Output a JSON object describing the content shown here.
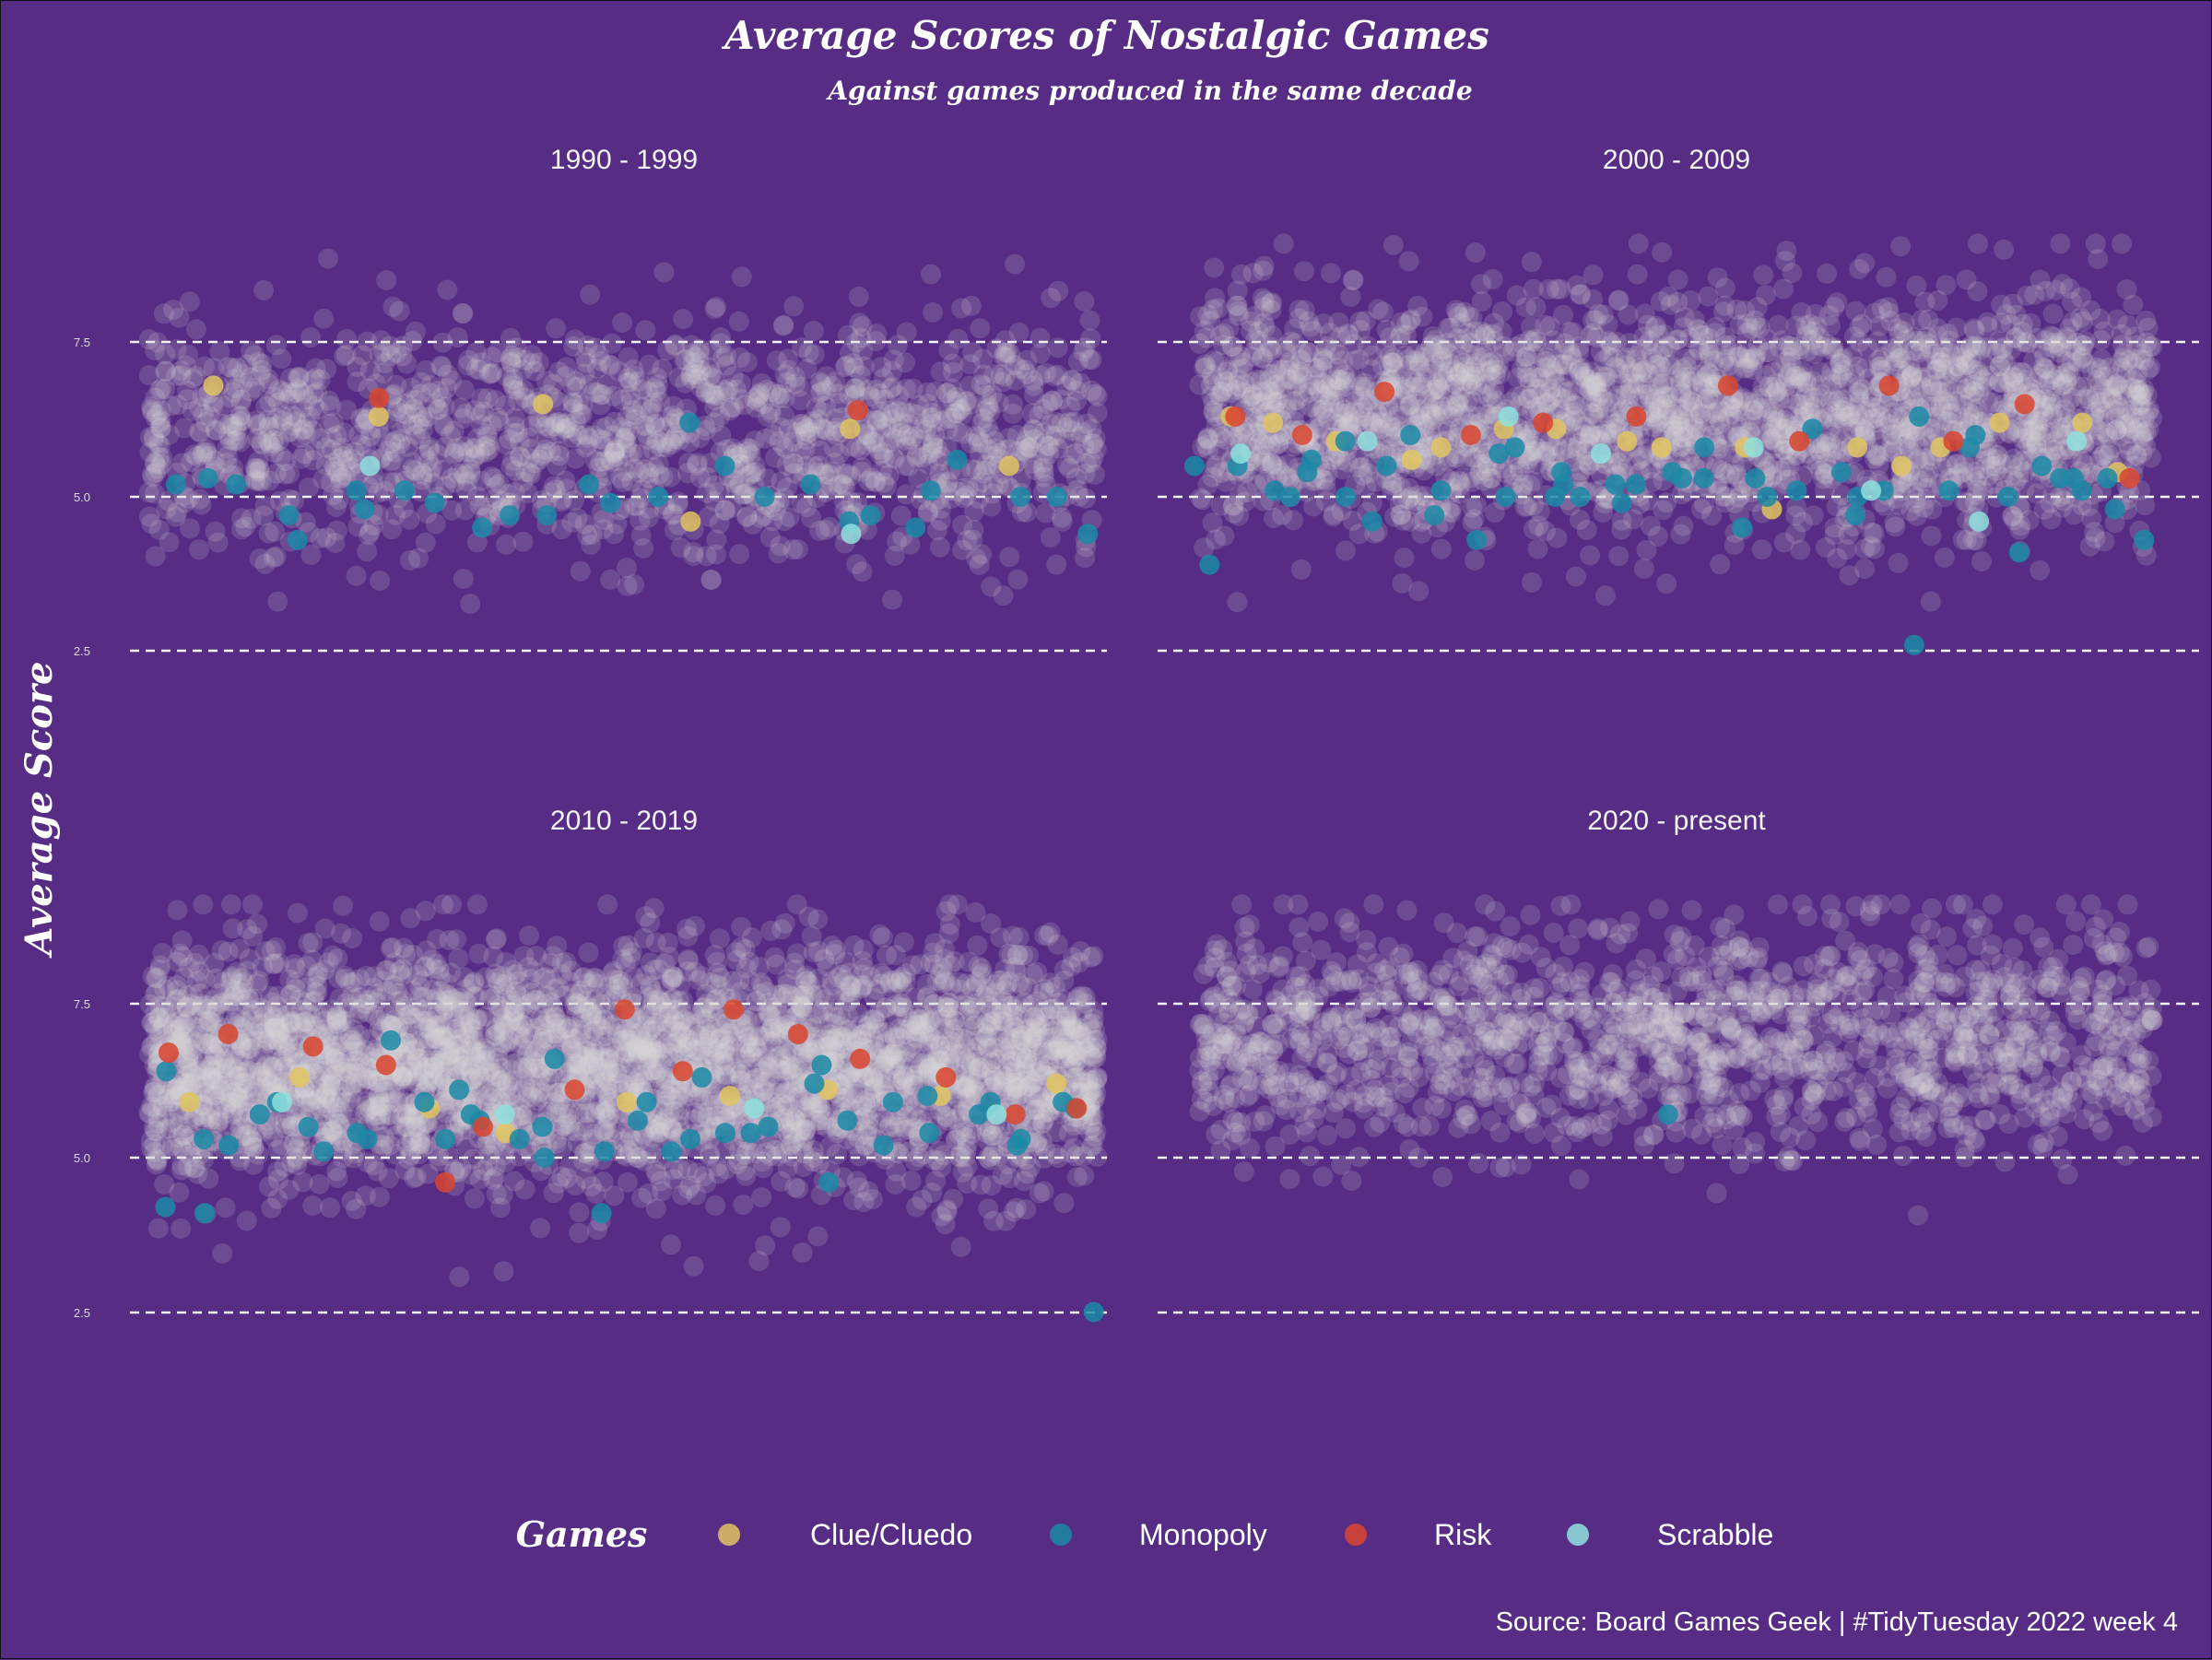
{
  "chart_data": {
    "type": "scatter",
    "title": "Average Scores of Nostalgic Games",
    "subtitle": "Against games produced in the same decade",
    "ylabel": "Average Score",
    "ylim": [
      0,
      10
    ],
    "yticks": [
      "2.5",
      "5.0",
      "7.5"
    ],
    "grid": "horizontal dashed at 2.5, 5.0, 7.5",
    "caption": "Source: Board Games Geek | #TidyTuesday 2022 week 4",
    "legend": {
      "title": "Games",
      "position": "bottom",
      "entries": [
        {
          "name": "Clue/Cluedo",
          "color": "#e0c461"
        },
        {
          "name": "Monopoly",
          "color": "#1b8aa6"
        },
        {
          "name": "Risk",
          "color": "#d9452e"
        },
        {
          "name": "Scrabble",
          "color": "#8fe0de"
        }
      ]
    },
    "colors": {
      "background": "#562c84",
      "background_points": "#d8d8d8",
      "gridline": "#ffffff"
    },
    "facets": [
      {
        "label": "1990 - 1999",
        "background": {
          "count": 1500,
          "mean": 6.0,
          "sd": 0.95
        },
        "highlight": {
          "Clue/Cluedo": [
            6.8,
            6.3,
            6.5,
            4.6,
            6.1,
            5.5
          ],
          "Monopoly": [
            5.2,
            5.3,
            5.2,
            4.7,
            4.3,
            5.1,
            4.8,
            5.1,
            4.9,
            4.5,
            4.7,
            4.7,
            5.2,
            4.9,
            5.0,
            6.2,
            5.5,
            5.0,
            5.2,
            4.6,
            4.7,
            4.5,
            5.1,
            5.6,
            5.0,
            5.0,
            4.4
          ],
          "Risk": [
            6.6,
            6.4
          ],
          "Scrabble": [
            5.5,
            4.4
          ]
        }
      },
      {
        "label": "2000 - 2009",
        "background": {
          "count": 2600,
          "mean": 6.35,
          "sd": 0.95
        },
        "highlight": {
          "Clue/Cluedo": [
            6.3,
            6.2,
            5.9,
            5.6,
            5.8,
            6.1,
            6.1,
            5.9,
            5.8,
            5.8,
            4.8,
            5.8,
            5.5,
            5.8,
            6.2,
            6.2,
            5.4
          ],
          "Monopoly": [
            5.5,
            3.9,
            5.5,
            5.1,
            5.0,
            5.4,
            5.6,
            5.0,
            5.9,
            4.6,
            5.5,
            6.0,
            5.1,
            4.7,
            4.3,
            5.7,
            5.0,
            5.8,
            5.0,
            5.4,
            5.2,
            5.0,
            5.2,
            4.9,
            5.2,
            5.3,
            5.4,
            5.3,
            5.8,
            5.3,
            4.5,
            5.0,
            5.1,
            6.1,
            5.4,
            5.0,
            4.7,
            5.1,
            2.6,
            6.3,
            5.1,
            6.0,
            5.8,
            5.0,
            4.1,
            5.5,
            5.3,
            5.3,
            5.1,
            4.8,
            5.3,
            4.3
          ],
          "Risk": [
            6.3,
            6.0,
            6.7,
            6.0,
            6.2,
            6.3,
            6.8,
            5.9,
            6.8,
            5.9,
            6.5,
            5.3
          ],
          "Scrabble": [
            5.7,
            5.9,
            6.3,
            5.7,
            5.8,
            5.1,
            4.6,
            5.9
          ]
        }
      },
      {
        "label": "2010 - 2019",
        "background": {
          "count": 3800,
          "mean": 6.5,
          "sd": 0.95
        },
        "highlight": {
          "Clue/Cluedo": [
            5.9,
            6.3,
            5.8,
            5.4,
            5.9,
            6.0,
            6.1,
            6.0,
            6.2
          ],
          "Monopoly": [
            6.4,
            4.2,
            4.1,
            5.3,
            5.2,
            5.7,
            5.9,
            5.5,
            5.1,
            5.4,
            5.3,
            6.9,
            5.9,
            5.3,
            6.1,
            5.7,
            5.6,
            5.3,
            5.0,
            5.5,
            6.6,
            4.1,
            5.1,
            5.9,
            5.6,
            5.1,
            5.3,
            6.3,
            5.4,
            5.4,
            5.5,
            6.2,
            6.5,
            4.6,
            5.6,
            5.2,
            5.9,
            6.0,
            5.4,
            5.7,
            5.9,
            5.2,
            5.3,
            5.9,
            5.8,
            2.5
          ],
          "Risk": [
            6.7,
            7.0,
            6.8,
            6.5,
            4.6,
            5.5,
            6.1,
            7.4,
            6.4,
            7.4,
            7.0,
            6.6,
            6.3,
            5.7,
            5.8
          ],
          "Scrabble": [
            5.9,
            5.7,
            5.8,
            5.7
          ]
        }
      },
      {
        "label": "2020 - present",
        "background": {
          "count": 1600,
          "mean": 7.0,
          "sd": 0.9
        },
        "highlight": {
          "Clue/Cluedo": [],
          "Monopoly": [
            5.7
          ],
          "Risk": [],
          "Scrabble": []
        }
      }
    ]
  }
}
